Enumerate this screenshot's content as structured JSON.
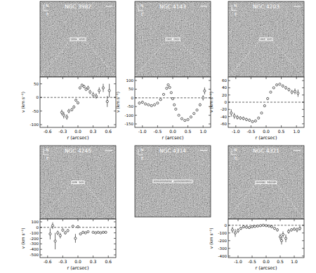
{
  "chart_data": [
    {
      "type": "scatter",
      "title": "NGC 3982",
      "compass": {
        "north": "N",
        "east": "E"
      },
      "marker": "circle",
      "x_label": "r (arcsec)",
      "y_label": "v (km s⁻¹)",
      "xlim": [
        -0.75,
        0.75
      ],
      "ylim": [
        -110,
        75
      ],
      "xticks": [
        -0.6,
        -0.3,
        {
          "value": 0,
          "label": "0.0"
        },
        0.3,
        0.6
      ],
      "yticks": [
        -100,
        -50,
        0,
        50
      ],
      "x": [
        -0.32,
        -0.28,
        -0.22,
        -0.18,
        -0.12,
        -0.08,
        -0.04,
        0.0,
        0.04,
        0.08,
        0.12,
        0.16,
        0.2,
        0.24,
        0.3,
        0.36,
        0.42,
        0.5,
        0.58,
        0.62
      ],
      "values": [
        -55,
        -65,
        -72,
        -50,
        -45,
        -35,
        -10,
        -20,
        35,
        45,
        40,
        30,
        35,
        20,
        10,
        5,
        25,
        35,
        -15,
        25
      ],
      "errors": [
        10,
        12,
        10,
        8,
        6,
        6,
        5,
        5,
        5,
        5,
        6,
        6,
        8,
        8,
        10,
        10,
        12,
        15,
        20,
        25
      ]
    },
    {
      "type": "scatter",
      "title": "NGC 4143",
      "compass": {
        "north": "N",
        "east": "E"
      },
      "marker": "circle",
      "x_label": "r (arcsec)",
      "y_label": "v (km s⁻¹)",
      "xlim": [
        -1.25,
        1.25
      ],
      "ylim": [
        -170,
        120
      ],
      "xticks": [
        {
          "value": -1,
          "label": "-1.0"
        },
        -0.5,
        {
          "value": 0,
          "label": "0.0"
        },
        0.5,
        {
          "value": 1,
          "label": "1.0"
        }
      ],
      "yticks": [
        -150,
        -100,
        -50,
        0,
        50,
        100
      ],
      "x": [
        -1.1,
        -1.0,
        -0.9,
        -0.8,
        -0.7,
        -0.6,
        -0.5,
        -0.4,
        -0.3,
        -0.2,
        -0.15,
        -0.1,
        -0.05,
        0.0,
        0.05,
        0.1,
        0.2,
        0.3,
        0.4,
        0.5,
        0.6,
        0.7,
        0.8,
        0.9,
        1.0,
        1.05
      ],
      "values": [
        -30,
        -25,
        -35,
        -40,
        -45,
        -40,
        -30,
        -10,
        20,
        55,
        75,
        60,
        30,
        -5,
        -40,
        -65,
        -100,
        -120,
        -130,
        -125,
        -110,
        -90,
        -70,
        -40,
        0,
        40
      ],
      "errors": [
        8,
        6,
        5,
        5,
        4,
        4,
        4,
        4,
        4,
        4,
        4,
        4,
        4,
        4,
        4,
        4,
        4,
        4,
        4,
        4,
        5,
        5,
        6,
        8,
        15,
        20
      ]
    },
    {
      "type": "scatter",
      "title": "NGC 4203",
      "compass": {
        "north": "N",
        "east": "E"
      },
      "marker": "circle",
      "x_label": "r (arcsec)",
      "y_label": "v (km s⁻¹)",
      "xlim": [
        -1.25,
        1.25
      ],
      "ylim": [
        -70,
        70
      ],
      "xticks": [
        {
          "value": -1,
          "label": "-1.0"
        },
        -0.5,
        {
          "value": 0,
          "label": "0.0"
        },
        0.5,
        {
          "value": 1,
          "label": "1.0"
        }
      ],
      "yticks": [
        -60,
        -40,
        -20,
        0,
        20,
        40,
        60
      ],
      "x": [
        -1.15,
        -1.05,
        -0.95,
        -0.85,
        -0.75,
        -0.65,
        -0.55,
        -0.45,
        -0.35,
        -0.25,
        -0.15,
        -0.05,
        0.05,
        0.15,
        0.25,
        0.35,
        0.45,
        0.55,
        0.65,
        0.75,
        0.85,
        0.95,
        1.05
      ],
      "values": [
        -30,
        -38,
        -42,
        -44,
        -45,
        -48,
        -50,
        -54,
        -52,
        -44,
        -30,
        -10,
        10,
        28,
        40,
        48,
        50,
        45,
        40,
        35,
        28,
        30,
        25
      ],
      "errors": [
        10,
        8,
        6,
        5,
        5,
        4,
        4,
        3,
        3,
        3,
        3,
        3,
        3,
        3,
        3,
        3,
        3,
        4,
        5,
        5,
        6,
        8,
        10
      ]
    },
    {
      "type": "scatter",
      "title": "NGC 4245",
      "compass": {
        "north": "N",
        "east": "E"
      },
      "marker": "circle",
      "x_label": "r (arcsec)",
      "y_label": "v (km s⁻¹)",
      "xlim": [
        -0.75,
        0.75
      ],
      "ylim": [
        -550,
        150
      ],
      "xticks": [
        -0.6,
        -0.3,
        {
          "value": 0,
          "label": "0.0"
        },
        0.3,
        0.6
      ],
      "yticks": [
        -500,
        -400,
        -300,
        -200,
        -100,
        0,
        100
      ],
      "x": [
        -0.55,
        -0.5,
        -0.45,
        -0.4,
        -0.35,
        -0.3,
        -0.25,
        -0.2,
        -0.1,
        -0.05,
        0.0,
        0.05,
        0.1,
        0.15,
        0.2,
        0.3,
        0.35,
        0.4,
        0.45,
        0.5,
        0.55
      ],
      "values": [
        -120,
        30,
        -250,
        -100,
        -150,
        -50,
        -100,
        -60,
        20,
        -200,
        10,
        -120,
        -90,
        -100,
        -80,
        -90,
        -100,
        -90,
        -100,
        -90,
        -90
      ],
      "errors": [
        100,
        60,
        150,
        40,
        50,
        30,
        30,
        25,
        20,
        80,
        20,
        20,
        20,
        15,
        15,
        15,
        15,
        15,
        15,
        15,
        20
      ]
    },
    {
      "type": "image",
      "title": "NGC 4314",
      "compass": {
        "north": "N",
        "east": "E"
      }
    },
    {
      "type": "scatter",
      "title": "NGC 4321",
      "compass": {
        "north": "N",
        "east": "E"
      },
      "marker": "circle",
      "x_label": "r (arcsec)",
      "y_label": "v (km s⁻¹)",
      "xlim": [
        -1.35,
        1.35
      ],
      "ylim": [
        -420,
        80
      ],
      "xticks": [
        {
          "value": -1,
          "label": "-1.0"
        },
        -0.5,
        {
          "value": 0,
          "label": "0.0"
        },
        0.5,
        {
          "value": 1,
          "label": "1.0"
        }
      ],
      "yticks": [
        -400,
        -300,
        -200,
        -100,
        0
      ],
      "x": [
        -1.2,
        -1.1,
        -1.0,
        -0.9,
        -0.8,
        -0.7,
        -0.6,
        -0.5,
        -0.4,
        -0.3,
        -0.2,
        -0.1,
        0.0,
        0.1,
        0.2,
        0.3,
        0.4,
        0.5,
        0.55,
        0.6,
        0.7,
        0.8,
        0.9,
        1.0,
        1.1,
        1.2
      ],
      "values": [
        -60,
        -100,
        -70,
        -40,
        -20,
        -25,
        -30,
        -20,
        -15,
        -10,
        -5,
        0,
        -5,
        -10,
        -20,
        -40,
        -60,
        -150,
        -200,
        -120,
        -170,
        -80,
        -60,
        -50,
        -60,
        -40
      ],
      "errors": [
        40,
        50,
        30,
        20,
        15,
        15,
        12,
        10,
        10,
        8,
        8,
        8,
        8,
        8,
        10,
        12,
        20,
        40,
        50,
        40,
        50,
        30,
        20,
        20,
        30,
        30
      ]
    }
  ]
}
